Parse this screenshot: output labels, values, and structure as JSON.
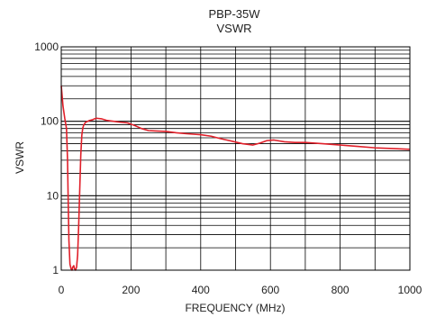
{
  "chart_data": {
    "type": "line",
    "title": "PBP-35W",
    "subtitle": "VSWR",
    "xlabel": "FREQUENCY (MHz)",
    "ylabel": "VSWR",
    "xlim": [
      0,
      1000
    ],
    "ylim": [
      1,
      1000
    ],
    "yscale": "log",
    "grid": true,
    "x_ticks": [
      0,
      200,
      400,
      600,
      800,
      1000
    ],
    "x_tick_labels": [
      "0",
      "200",
      "400",
      "600",
      "800",
      "1000"
    ],
    "y_ticks": [
      1,
      10,
      100,
      1000
    ],
    "y_tick_labels": [
      "1",
      "10",
      "100",
      "1000"
    ],
    "series": [
      {
        "color": "#e0202a",
        "points": [
          [
            0,
            300
          ],
          [
            5,
            160
          ],
          [
            10,
            110
          ],
          [
            15,
            80
          ],
          [
            18,
            30
          ],
          [
            20,
            8
          ],
          [
            22,
            2.5
          ],
          [
            25,
            1.2
          ],
          [
            28,
            1.05
          ],
          [
            31,
            1.0
          ],
          [
            33,
            1.1
          ],
          [
            36,
            1.15
          ],
          [
            38,
            1.05
          ],
          [
            41,
            1.0
          ],
          [
            44,
            1.1
          ],
          [
            47,
            1.6
          ],
          [
            50,
            4
          ],
          [
            53,
            12
          ],
          [
            56,
            35
          ],
          [
            59,
            65
          ],
          [
            62,
            82
          ],
          [
            65,
            90
          ],
          [
            70,
            97
          ],
          [
            80,
            102
          ],
          [
            90,
            105
          ],
          [
            100,
            110
          ],
          [
            115,
            108
          ],
          [
            130,
            103
          ],
          [
            150,
            100
          ],
          [
            170,
            97
          ],
          [
            190,
            95
          ],
          [
            210,
            88
          ],
          [
            230,
            80
          ],
          [
            250,
            75
          ],
          [
            270,
            74
          ],
          [
            300,
            73
          ],
          [
            330,
            70
          ],
          [
            360,
            68
          ],
          [
            400,
            66
          ],
          [
            430,
            63
          ],
          [
            460,
            58
          ],
          [
            490,
            54
          ],
          [
            520,
            50
          ],
          [
            550,
            48
          ],
          [
            570,
            51
          ],
          [
            590,
            55
          ],
          [
            610,
            56
          ],
          [
            640,
            53
          ],
          [
            670,
            52
          ],
          [
            700,
            52
          ],
          [
            750,
            50
          ],
          [
            800,
            48
          ],
          [
            850,
            46
          ],
          [
            900,
            44
          ],
          [
            950,
            43
          ],
          [
            1000,
            42
          ]
        ]
      }
    ]
  }
}
